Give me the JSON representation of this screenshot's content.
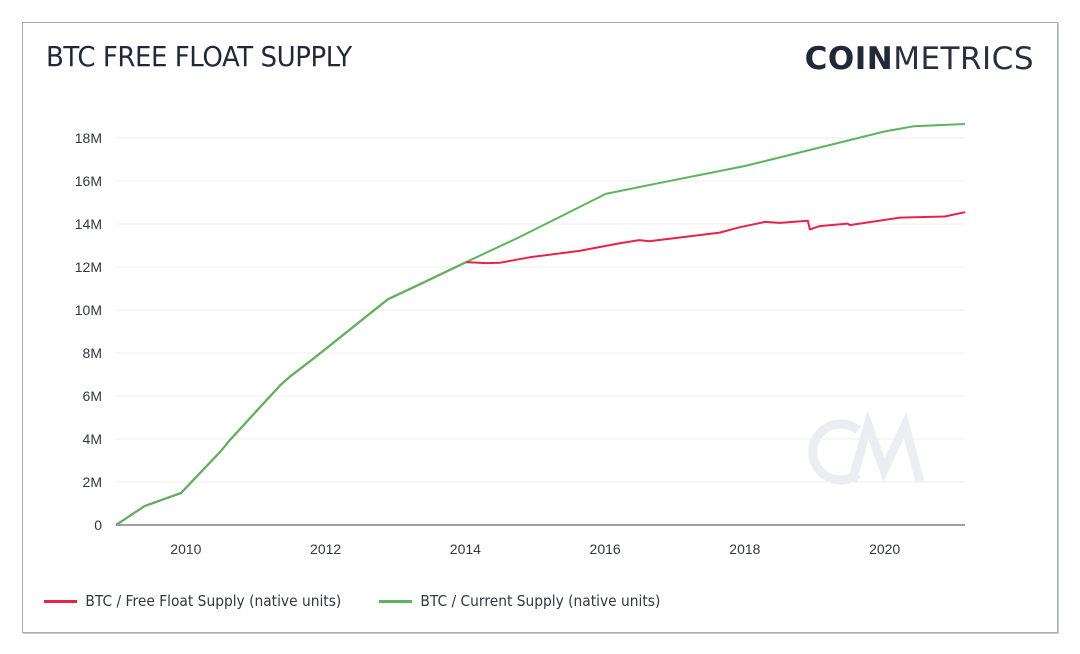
{
  "header": {
    "title": "BTC FREE FLOAT SUPPLY",
    "logo_bold": "COIN",
    "logo_light": "METRICS",
    "watermark": "CM"
  },
  "colors": {
    "free_float": "#e8234a",
    "current_supply": "#5cb45f",
    "text": "#232838",
    "grid": "#eeeeee",
    "axis": "#a9adb3"
  },
  "legend": {
    "items": [
      {
        "label": "BTC / Free Float Supply (native units)",
        "color": "#e8234a"
      },
      {
        "label": "BTC / Current Supply (native units)",
        "color": "#5cb45f"
      }
    ]
  },
  "chart_data": {
    "type": "line",
    "title": "BTC FREE FLOAT SUPPLY",
    "xlabel": "",
    "ylabel": "",
    "xlim": [
      2009.0,
      2021.15
    ],
    "ylim": [
      0,
      18000000
    ],
    "grid": true,
    "legend_position": "bottom-left",
    "x_ticks": [
      2010,
      2012,
      2014,
      2016,
      2018,
      2020
    ],
    "x_tick_labels": [
      "2010",
      "2012",
      "2014",
      "2016",
      "2018",
      "2020"
    ],
    "y_ticks": [
      0,
      2000000,
      4000000,
      6000000,
      8000000,
      10000000,
      12000000,
      14000000,
      16000000,
      18000000
    ],
    "y_tick_labels": [
      "0",
      "2M",
      "4M",
      "6M",
      "8M",
      "10M",
      "12M",
      "14M",
      "16M",
      "18M"
    ],
    "series": [
      {
        "name": "BTC / Free Float Supply (native units)",
        "color": "#e8234a",
        "points": [
          [
            2009.0,
            0
          ],
          [
            2009.41,
            880000
          ],
          [
            2009.93,
            1490000
          ],
          [
            2010.49,
            3400000
          ],
          [
            2010.63,
            3950000
          ],
          [
            2010.92,
            4980000
          ],
          [
            2011.35,
            6500000
          ],
          [
            2011.49,
            6900000
          ],
          [
            2011.85,
            7800000
          ],
          [
            2012.89,
            10500000
          ],
          [
            2013.35,
            11200000
          ],
          [
            2014.01,
            12230000
          ],
          [
            2014.3,
            12180000
          ],
          [
            2014.5,
            12200000
          ],
          [
            2014.92,
            12450000
          ],
          [
            2015.63,
            12750000
          ],
          [
            2016.2,
            13100000
          ],
          [
            2016.49,
            13250000
          ],
          [
            2016.63,
            13200000
          ],
          [
            2017.64,
            13600000
          ],
          [
            2017.93,
            13850000
          ],
          [
            2018.29,
            14100000
          ],
          [
            2018.5,
            14050000
          ],
          [
            2018.9,
            14150000
          ],
          [
            2018.93,
            13750000
          ],
          [
            2019.07,
            13900000
          ],
          [
            2019.47,
            14020000
          ],
          [
            2019.5,
            13950000
          ],
          [
            2020.22,
            14300000
          ],
          [
            2020.86,
            14350000
          ],
          [
            2021.15,
            14550000
          ]
        ]
      },
      {
        "name": "BTC / Current Supply (native units)",
        "color": "#5cb45f",
        "points": [
          [
            2009.0,
            0
          ],
          [
            2009.41,
            880000
          ],
          [
            2009.93,
            1490000
          ],
          [
            2010.49,
            3400000
          ],
          [
            2010.63,
            3950000
          ],
          [
            2010.92,
            4980000
          ],
          [
            2011.35,
            6500000
          ],
          [
            2011.49,
            6900000
          ],
          [
            2011.85,
            7800000
          ],
          [
            2012.89,
            10500000
          ],
          [
            2013.35,
            11200000
          ],
          [
            2014.01,
            12230000
          ],
          [
            2014.78,
            13400000
          ],
          [
            2016.01,
            15400000
          ],
          [
            2016.61,
            15800000
          ],
          [
            2018.01,
            16700000
          ],
          [
            2019.99,
            18300000
          ],
          [
            2020.42,
            18550000
          ],
          [
            2021.15,
            18650000
          ]
        ]
      }
    ]
  }
}
